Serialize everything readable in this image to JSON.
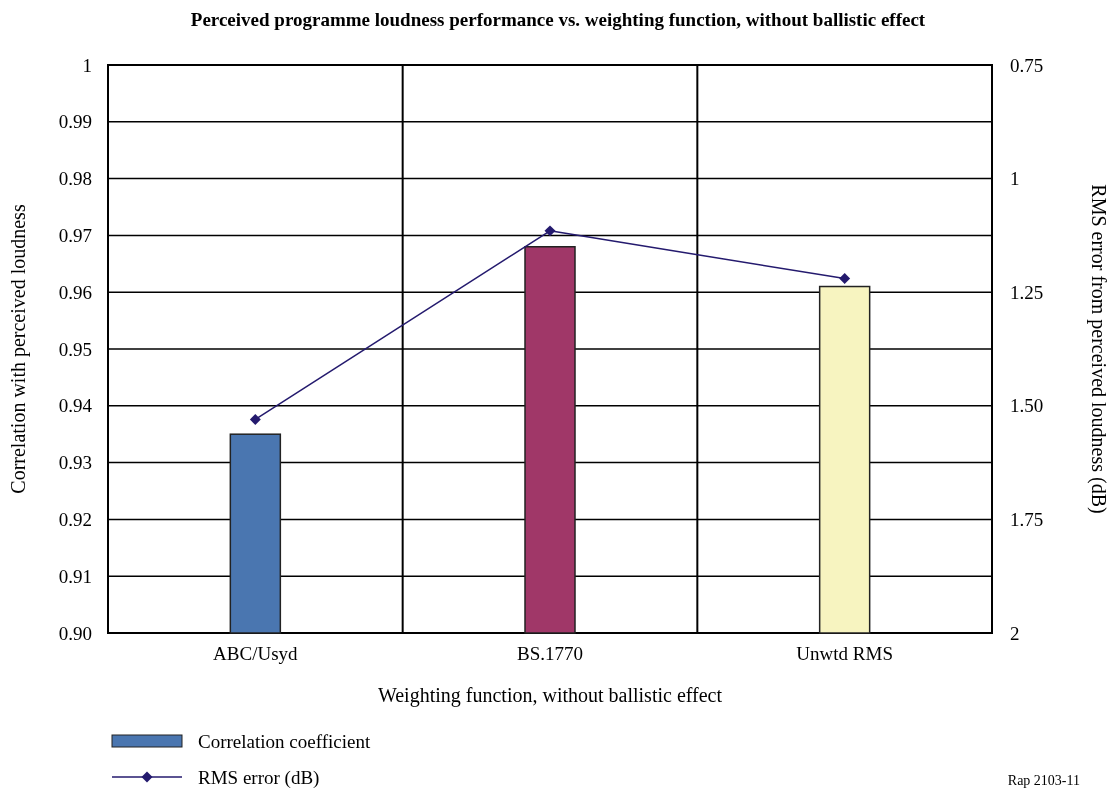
{
  "chart_data": {
    "type": "bar",
    "title": "Perceived programme loudness performance vs. weighting function, without ballistic effect",
    "xlabel": "Weighting function, without ballistic effect",
    "ylabel": "Correlation with perceived loudness",
    "y2label": "RMS error from perceived loudness (dB)",
    "categories": [
      "ABC/Usyd",
      "BS.1770",
      "Unwtd RMS"
    ],
    "series": [
      {
        "name": "Correlation coefficient",
        "color": "#4a76b0",
        "colors": [
          "#4a76b0",
          "#a03768",
          "#f7f4c0"
        ],
        "values": [
          0.935,
          0.968,
          0.961
        ]
      },
      {
        "name": "RMS error (dB)",
        "type": "line",
        "axis": "y2",
        "color": "#241a6e",
        "marker": "diamond",
        "values": [
          1.53,
          1.115,
          1.22
        ]
      }
    ],
    "ylim": [
      0.9,
      1
    ],
    "yticks": [
      {
        "value": 0.9,
        "label": "0.90"
      },
      0.91,
      0.92,
      0.93,
      0.94,
      0.95,
      0.96,
      0.97,
      0.98,
      0.99,
      1
    ],
    "y2lim": [
      2,
      0.75
    ],
    "y2ticks": [
      0.75,
      1,
      1.25,
      {
        "value": 1.5,
        "label": "1.50"
      },
      1.75,
      2
    ],
    "grid": true,
    "legend": "bottom",
    "annotations": [
      "Rap 2103-11"
    ]
  }
}
